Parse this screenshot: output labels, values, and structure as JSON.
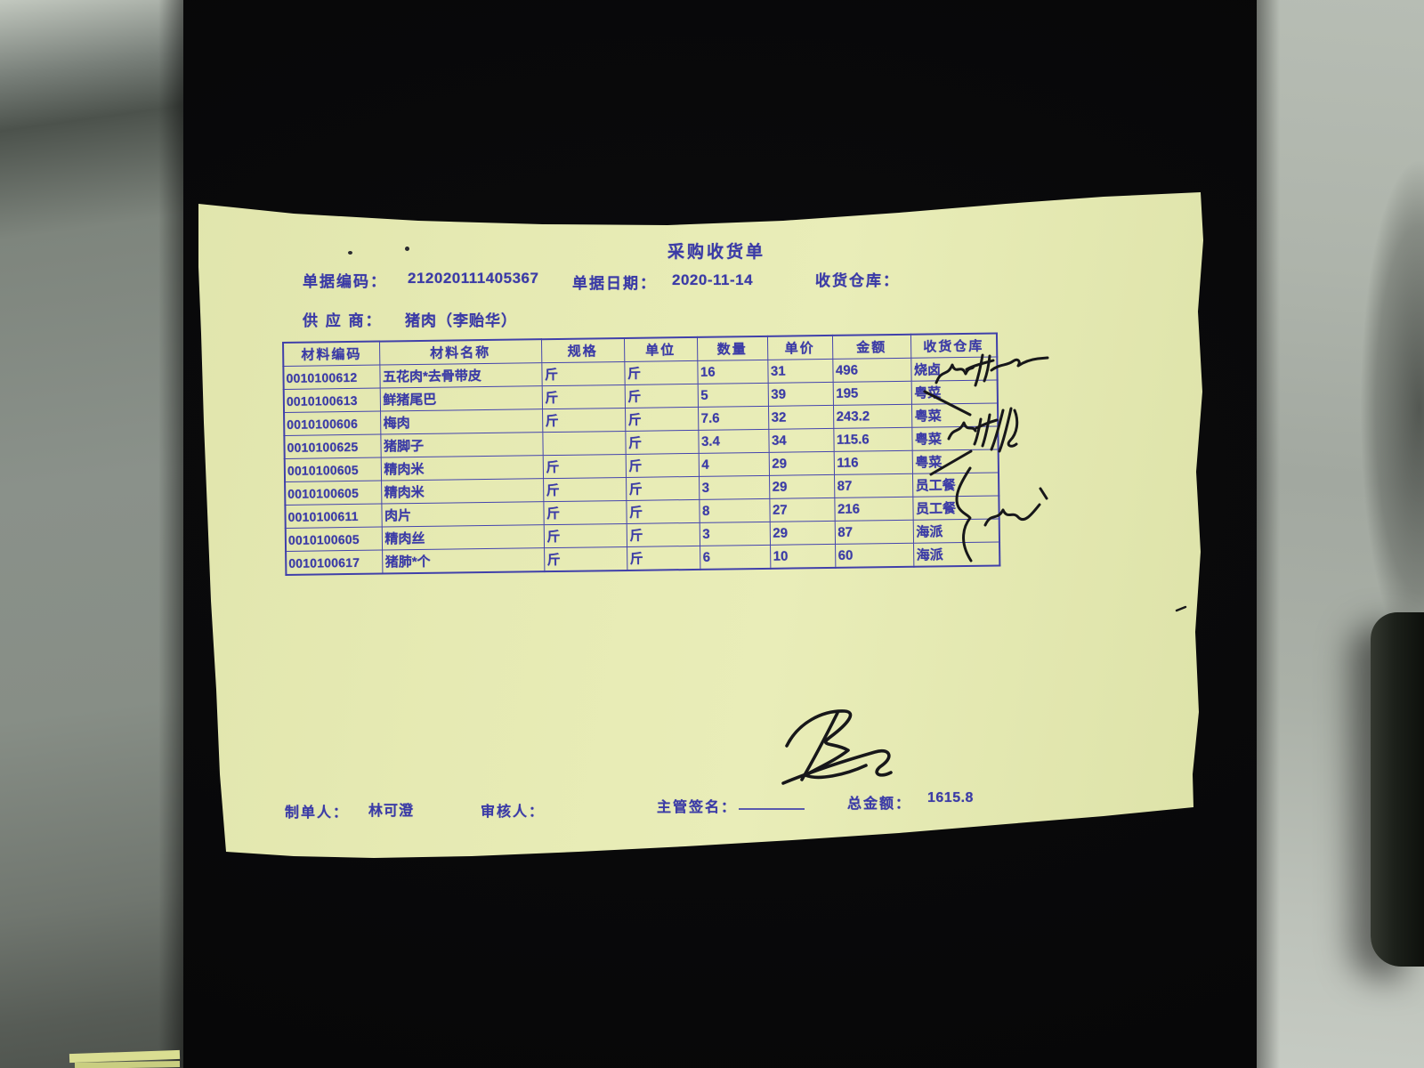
{
  "photo": {
    "background_color": "#0a0a0c",
    "paper_color": "#e6eab3",
    "print_color": "#3b3ba6",
    "pen_ink_color": "#17171a",
    "desk_left_color": "#8a918a",
    "desk_right_color": "#aeb4ab"
  },
  "document": {
    "title": "采购收货单",
    "fields": {
      "code_label": "单据编码：",
      "code_value": "212020111405367",
      "date_label": "单据日期：",
      "date_value": "2020-11-14",
      "warehouse_label": "收货仓库：",
      "warehouse_value": "",
      "supplier_label": "供 应 商：",
      "supplier_value": "猪肉（李贻华）"
    },
    "table": {
      "headers": [
        "材料编码",
        "材料名称",
        "规格",
        "单位",
        "数量",
        "单价",
        "金额",
        "收货仓库"
      ],
      "rows": [
        [
          "0010100612",
          "五花肉*去骨带皮",
          "斤",
          "斤",
          "16",
          "31",
          "496",
          "烧卤"
        ],
        [
          "0010100613",
          "鲜猪尾巴",
          "斤",
          "斤",
          "5",
          "39",
          "195",
          "粤菜"
        ],
        [
          "0010100606",
          "梅肉",
          "斤",
          "斤",
          "7.6",
          "32",
          "243.2",
          "粤菜"
        ],
        [
          "0010100625",
          "猪脚子",
          "",
          "斤",
          "3.4",
          "34",
          "115.6",
          "粤菜"
        ],
        [
          "0010100605",
          "精肉米",
          "斤",
          "斤",
          "4",
          "29",
          "116",
          "粤菜"
        ],
        [
          "0010100605",
          "精肉米",
          "斤",
          "斤",
          "3",
          "29",
          "87",
          "员工餐"
        ],
        [
          "0010100611",
          "肉片",
          "斤",
          "斤",
          "8",
          "27",
          "216",
          "员工餐"
        ],
        [
          "0010100605",
          "精肉丝",
          "斤",
          "斤",
          "3",
          "29",
          "87",
          "海派"
        ],
        [
          "0010100617",
          "猪肺*个",
          "斤",
          "斤",
          "6",
          "10",
          "60",
          "海派"
        ]
      ]
    },
    "footer": {
      "maker_label": "制单人：",
      "maker_value": "林可澄",
      "auditor_label": "审核人：",
      "auditor_value": "",
      "manager_sign_label": "主管签名：",
      "total_label": "总金额：",
      "total_value": "1615.8"
    },
    "ink_marks": [
      {
        "name": "signature-scrawl-row1",
        "kind": "handwritten-signature"
      },
      {
        "name": "check-stroke-row2",
        "kind": "pen-stroke"
      },
      {
        "name": "signature-scrawl-rows3-4",
        "kind": "handwritten-signature"
      },
      {
        "name": "check-stroke-row5",
        "kind": "pen-stroke"
      },
      {
        "name": "brace-rows6-9",
        "kind": "pen-brace"
      },
      {
        "name": "signature-scrawl-right",
        "kind": "handwritten-signature"
      },
      {
        "name": "signature-scrawl-bottom",
        "kind": "handwritten-signature"
      }
    ]
  }
}
